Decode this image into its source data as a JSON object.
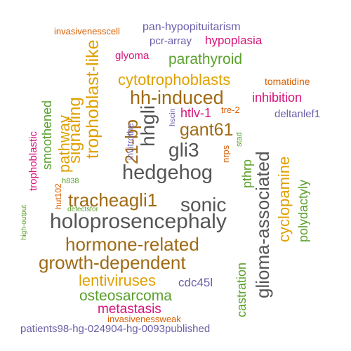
{
  "colors": {
    "gray": "#555555",
    "orange": "#d95f02",
    "purple": "#6a5fa8",
    "magenta": "#d6137a",
    "green": "#5aa02c",
    "gold": "#e0a000",
    "brown": "#a06a14"
  },
  "words": [
    {
      "text": "invasivenesscell",
      "color": "orange"
    },
    {
      "text": "pan-hypopituitarism",
      "color": "purple"
    },
    {
      "text": "pcr-array",
      "color": "purple"
    },
    {
      "text": "hypoplasia",
      "color": "magenta"
    },
    {
      "text": "glyoma",
      "color": "magenta"
    },
    {
      "text": "parathyroid",
      "color": "green"
    },
    {
      "text": "trophoblast-like",
      "color": "gold"
    },
    {
      "text": "cytotrophoblasts",
      "color": "gold"
    },
    {
      "text": "tomatidine",
      "color": "orange"
    },
    {
      "text": "hh-induced",
      "color": "brown"
    },
    {
      "text": "inhibition",
      "color": "magenta"
    },
    {
      "text": "signaling",
      "color": "gold"
    },
    {
      "text": "hhgli",
      "color": "gray"
    },
    {
      "text": "smoothened",
      "color": "green"
    },
    {
      "text": "pathway",
      "color": "gold"
    },
    {
      "text": "21-bp",
      "color": "brown"
    },
    {
      "text": "invitrothe",
      "color": "purple"
    },
    {
      "text": "htlv-1",
      "color": "magenta"
    },
    {
      "text": "tre-2",
      "color": "orange"
    },
    {
      "text": "deltanlef1",
      "color": "purple"
    },
    {
      "text": "hscin",
      "color": "purple"
    },
    {
      "text": "gant61",
      "color": "brown"
    },
    {
      "text": "trophoblastic",
      "color": "magenta"
    },
    {
      "text": "gli3",
      "color": "gray"
    },
    {
      "text": "glioma-associated",
      "color": "gray"
    },
    {
      "text": "nrps",
      "color": "orange"
    },
    {
      "text": "stad",
      "color": "green"
    },
    {
      "text": "cyclopamine",
      "color": "gold"
    },
    {
      "text": "hedgehog",
      "color": "gray"
    },
    {
      "text": "pthrp",
      "color": "green"
    },
    {
      "text": "h838",
      "color": "green"
    },
    {
      "text": "polydactyly",
      "color": "green"
    },
    {
      "text": "hut102",
      "color": "orange"
    },
    {
      "text": "tracheagli1",
      "color": "brown"
    },
    {
      "text": "sonic",
      "color": "gray"
    },
    {
      "text": "high-output",
      "color": "green"
    },
    {
      "text": "defectsfor",
      "color": "green"
    },
    {
      "text": "holoprosencephaly",
      "color": "gray"
    },
    {
      "text": "hormone-related",
      "color": "brown"
    },
    {
      "text": "growth-dependent",
      "color": "brown"
    },
    {
      "text": "castration",
      "color": "green"
    },
    {
      "text": "lentiviruses",
      "color": "gold"
    },
    {
      "text": "osteosarcoma",
      "color": "green"
    },
    {
      "text": "cdc45l",
      "color": "purple"
    },
    {
      "text": "metastasis",
      "color": "magenta"
    },
    {
      "text": "invasivenessweak",
      "color": "orange"
    },
    {
      "text": "patients98-hg-024904-hg-0093published",
      "color": "purple"
    }
  ]
}
